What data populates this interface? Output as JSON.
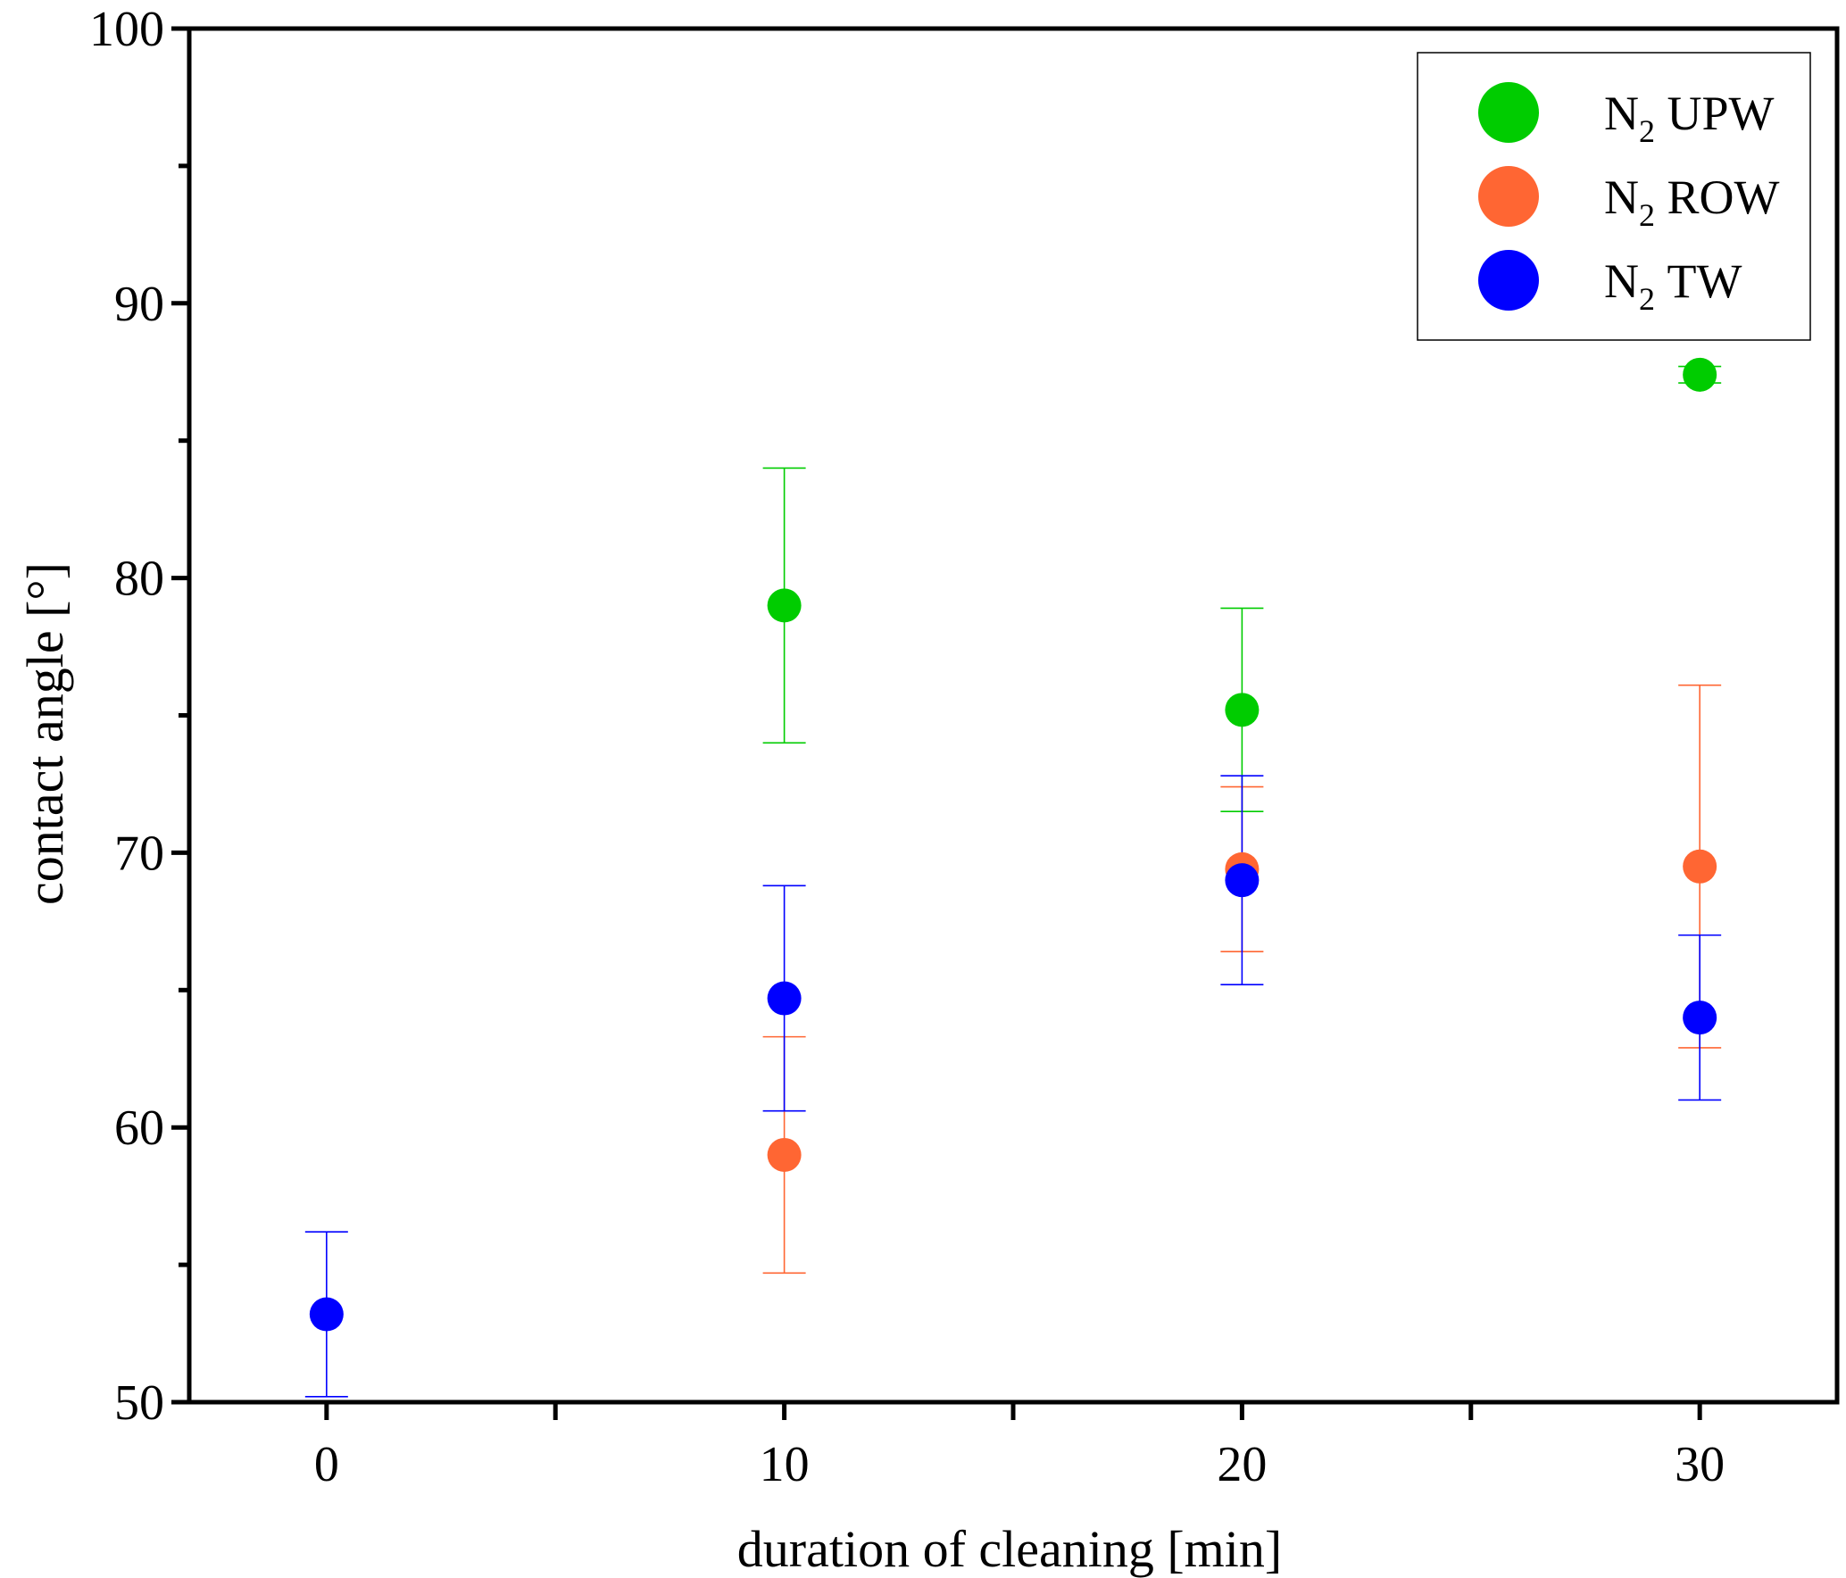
{
  "chart_data": {
    "type": "scatter",
    "title": "",
    "xlabel": "duration of cleaning [min]",
    "ylabel": "contact angle [°]",
    "xlim": [
      -3,
      33
    ],
    "ylim": [
      50,
      100
    ],
    "x_ticks": [
      0,
      10,
      20,
      30
    ],
    "x_tick_labels": [
      "0",
      "10",
      "20",
      "30"
    ],
    "x_minor_ticks": [
      5,
      15,
      25
    ],
    "y_ticks": [
      50,
      60,
      70,
      80,
      90,
      100
    ],
    "y_tick_labels": [
      "50",
      "60",
      "70",
      "80",
      "90",
      "100"
    ],
    "y_minor_ticks": [
      55,
      65,
      75,
      85,
      95
    ],
    "grid": false,
    "legend_position": "top-right",
    "series": [
      {
        "name": "N2 UPW",
        "label_main": "N",
        "label_sub": "2",
        "label_rest": " UPW",
        "color": "#00cc00",
        "points": [
          {
            "x": 10,
            "y": 79.0,
            "err": 5.0
          },
          {
            "x": 20,
            "y": 75.2,
            "err": 3.7
          },
          {
            "x": 30,
            "y": 87.4,
            "err": 0.3
          }
        ]
      },
      {
        "name": "N2 ROW",
        "label_main": "N",
        "label_sub": "2",
        "label_rest": " ROW",
        "color": "#ff6633",
        "points": [
          {
            "x": 10,
            "y": 59.0,
            "err": 4.3
          },
          {
            "x": 20,
            "y": 69.4,
            "err": 3.0
          },
          {
            "x": 30,
            "y": 69.5,
            "err": 6.6
          }
        ]
      },
      {
        "name": "N2 TW",
        "label_main": "N",
        "label_sub": "2",
        "label_rest": " TW",
        "color": "#0000ff",
        "points": [
          {
            "x": 0,
            "y": 53.2,
            "err": 3.0
          },
          {
            "x": 10,
            "y": 64.7,
            "err": 4.1
          },
          {
            "x": 20,
            "y": 69.0,
            "err": 3.8
          },
          {
            "x": 30,
            "y": 64.0,
            "err": 3.0
          }
        ]
      }
    ]
  }
}
